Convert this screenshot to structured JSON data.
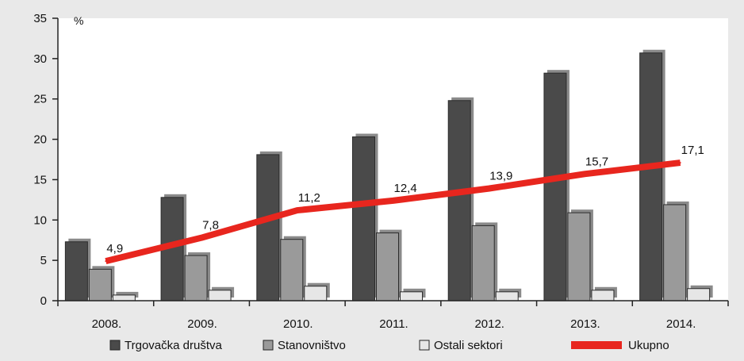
{
  "chart_data": {
    "type": "bar",
    "unit": "%",
    "categories": [
      "2008.",
      "2009.",
      "2010.",
      "2011.",
      "2012.",
      "2013.",
      "2014."
    ],
    "series": [
      {
        "name": "Trgovačka društva",
        "kind": "bar",
        "color": "#4a4a4a",
        "values": [
          7.3,
          12.8,
          18.1,
          20.3,
          24.8,
          28.2,
          30.7
        ]
      },
      {
        "name": "Stanovništvo",
        "kind": "bar",
        "color": "#9a9a9a",
        "values": [
          3.9,
          5.6,
          7.6,
          8.4,
          9.3,
          10.9,
          11.9
        ]
      },
      {
        "name": "Ostali sektori",
        "kind": "bar",
        "color": "#e6e6e6",
        "values": [
          0.7,
          1.3,
          1.8,
          1.1,
          1.1,
          1.3,
          1.5
        ]
      },
      {
        "name": "Ukupno",
        "kind": "line",
        "color": "#e8261e",
        "values": [
          4.9,
          7.8,
          11.2,
          12.4,
          13.9,
          15.7,
          17.1
        ],
        "labels": [
          "4,9",
          "7,8",
          "11,2",
          "12,4",
          "13,9",
          "15,7",
          "17,1"
        ]
      }
    ],
    "ylim": [
      0,
      35
    ],
    "yticks": [
      "0",
      "5",
      "10",
      "15",
      "20",
      "25",
      "30",
      "35"
    ],
    "grid": false,
    "legend_position": "bottom"
  }
}
